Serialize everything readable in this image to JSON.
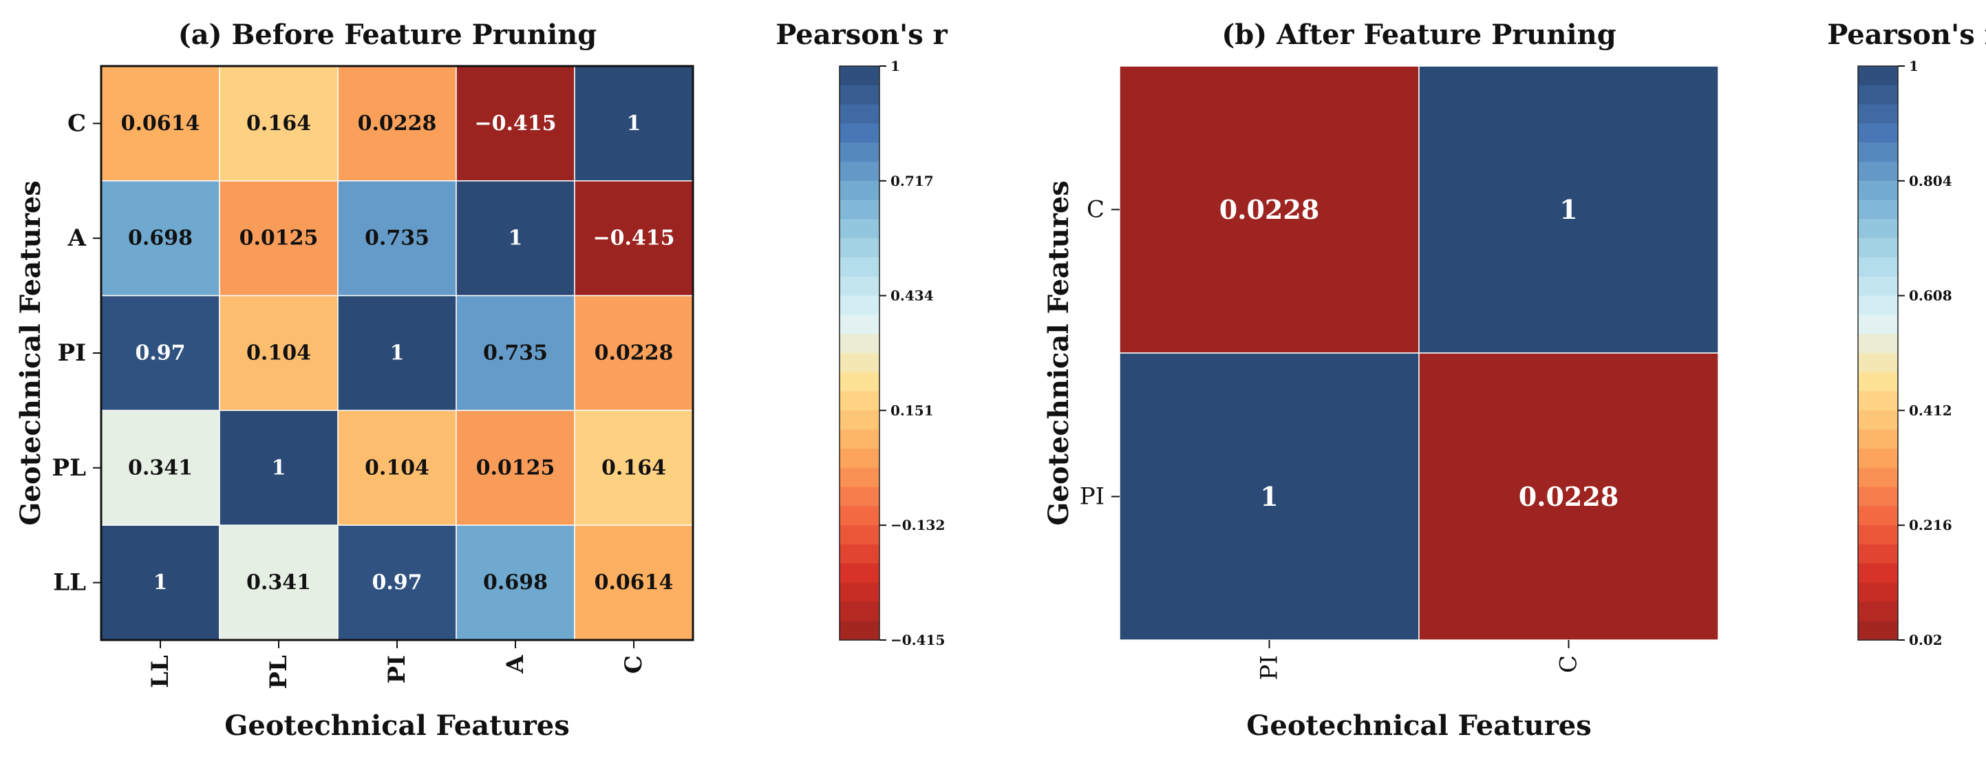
{
  "chart_data": [
    {
      "type": "heatmap",
      "title": "(a) Before Feature Pruning",
      "xlabel": "Geotechnical Features",
      "ylabel": "Geotechnical Features",
      "x_categories": [
        "LL",
        "PL",
        "PI",
        "A",
        "C"
      ],
      "y_categories": [
        "C",
        "A",
        "PI",
        "PL",
        "LL"
      ],
      "values": [
        [
          0.0614,
          0.164,
          0.0228,
          -0.415,
          1
        ],
        [
          0.698,
          0.0125,
          0.735,
          1,
          -0.415
        ],
        [
          0.97,
          0.104,
          1,
          0.735,
          0.0228
        ],
        [
          0.341,
          1,
          0.104,
          0.0125,
          0.164
        ],
        [
          1,
          0.341,
          0.97,
          0.698,
          0.0614
        ]
      ],
      "cell_labels": [
        [
          "0.0614",
          "0.164",
          "0.0228",
          "−0.415",
          "1"
        ],
        [
          "0.698",
          "0.0125",
          "0.735",
          "1",
          "−0.415"
        ],
        [
          "0.97",
          "0.104",
          "1",
          "0.735",
          "0.0228"
        ],
        [
          "0.341",
          "1",
          "0.104",
          "0.0125",
          "0.164"
        ],
        [
          "1",
          "0.341",
          "0.97",
          "0.698",
          "0.0614"
        ]
      ],
      "colorbar": {
        "title": "Pearson's r",
        "range": [
          -0.415,
          1
        ],
        "tick_values": [
          1,
          0.717,
          0.434,
          0.151,
          -0.132,
          -0.415
        ],
        "tick_labels": [
          "1",
          "0.717",
          "0.434",
          "0.151",
          "−0.132",
          "−0.415"
        ]
      }
    },
    {
      "type": "heatmap",
      "title": "(b) After Feature Pruning",
      "xlabel": "Geotechnical Features",
      "ylabel": "Geotechnical Features",
      "x_categories": [
        "PI",
        "C"
      ],
      "y_categories": [
        "C",
        "PI"
      ],
      "values": [
        [
          0.0228,
          1
        ],
        [
          1,
          0.0228
        ]
      ],
      "cell_labels": [
        [
          "0.0228",
          "1"
        ],
        [
          "1",
          "0.0228"
        ]
      ],
      "colorbar": {
        "title": "Pearson's r",
        "range": [
          0.02,
          1
        ],
        "tick_values": [
          1,
          0.804,
          0.608,
          0.412,
          0.216,
          0.02
        ],
        "tick_labels": [
          "1",
          "0.804",
          "0.608",
          "0.412",
          "0.216",
          "0.02"
        ]
      }
    }
  ],
  "colormap": {
    "name": "RdYlBu-like",
    "stops": [
      "#9b2420",
      "#d73027",
      "#f46d43",
      "#fdae61",
      "#fee090",
      "#e0f3f8",
      "#abd9e9",
      "#74add1",
      "#4575b4",
      "#2b4a75"
    ]
  }
}
